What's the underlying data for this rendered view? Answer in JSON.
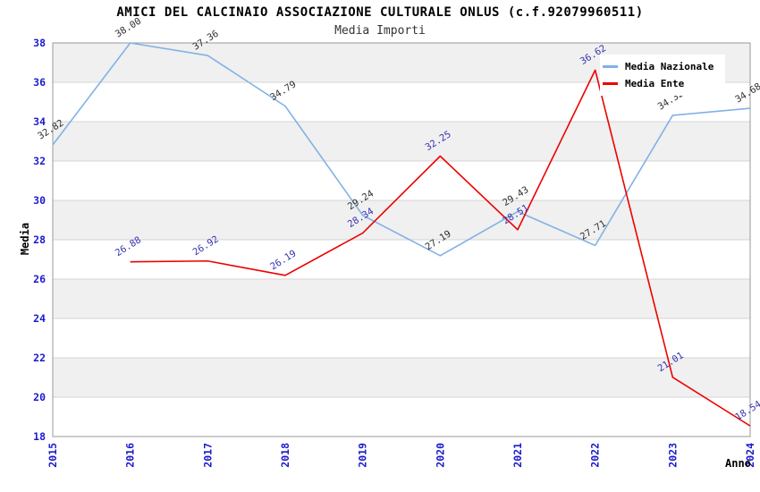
{
  "page": {
    "title": "AMICI DEL CALCINAIO ASSOCIAZIONE CULTURALE ONLUS (c.f.92079960511)",
    "subtitle": "Media Importi"
  },
  "legend": {
    "items": [
      {
        "label": "Media Nazionale",
        "color": "#82B1E6"
      },
      {
        "label": "Media Ente",
        "color": "#EE0000"
      }
    ]
  },
  "axes": {
    "y_title": "Media",
    "x_title": "Anno",
    "y_ticks": [
      "38",
      "36",
      "34",
      "32",
      "30",
      "28",
      "26",
      "24",
      "22",
      "20",
      "18"
    ],
    "x_ticks": [
      "2015",
      "2016",
      "2017",
      "2018",
      "2019",
      "2020",
      "2021",
      "2022",
      "2023",
      "2024"
    ]
  },
  "chart_data": {
    "type": "line",
    "title": "AMICI DEL CALCINAIO ASSOCIAZIONE CULTURALE ONLUS (c.f.92079960511)",
    "subtitle": "Media Importi",
    "xlabel": "Anno",
    "ylabel": "Media",
    "x": [
      "2015",
      "2016",
      "2017",
      "2018",
      "2019",
      "2020",
      "2021",
      "2022",
      "2023",
      "2024"
    ],
    "series": [
      {
        "name": "Media Nazionale",
        "color": "#82B1E6",
        "label_color": "#303030",
        "values": [
          32.82,
          38.0,
          37.36,
          34.79,
          29.24,
          27.19,
          29.43,
          27.71,
          34.32,
          34.68
        ]
      },
      {
        "name": "Media Ente",
        "color": "#EE0000",
        "label_color": "#3535B2",
        "values": [
          null,
          26.88,
          26.92,
          26.19,
          28.34,
          32.25,
          28.51,
          36.62,
          21.01,
          18.54
        ]
      }
    ],
    "ylim": [
      18,
      38
    ],
    "y_tick_step": 2,
    "grid": "horizontal",
    "band_intervals": [
      [
        36,
        38
      ],
      [
        32,
        34
      ],
      [
        28,
        30
      ],
      [
        24,
        26
      ],
      [
        20,
        22
      ]
    ],
    "legend_position": "top-right"
  },
  "style": {
    "tick_color": "#1A1ACC",
    "grid_color": "#D4D4D4",
    "border_color": "#999999",
    "band_color": "#F0F0F0",
    "background": "#FFFFFF"
  }
}
